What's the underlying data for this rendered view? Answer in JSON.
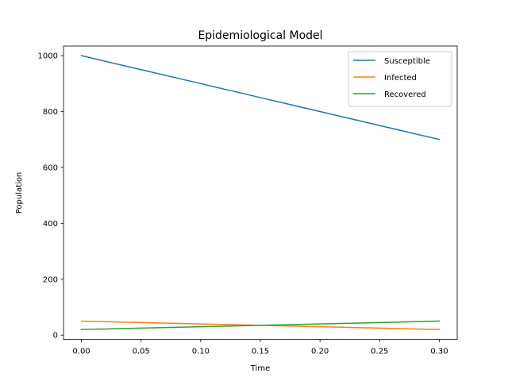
{
  "chart_data": {
    "type": "line",
    "title": "Epidemiological Model",
    "xlabel": "Time",
    "ylabel": "Population",
    "x": [
      0.0,
      0.05,
      0.1,
      0.15,
      0.2,
      0.25,
      0.3
    ],
    "xlim": [
      -0.015,
      0.315
    ],
    "ylim": [
      -15.4,
      1034.4
    ],
    "xticks": [
      0.0,
      0.05,
      0.1,
      0.15,
      0.2,
      0.25,
      0.3
    ],
    "xtick_labels": [
      "0.00",
      "0.05",
      "0.10",
      "0.15",
      "0.20",
      "0.25",
      "0.30"
    ],
    "yticks": [
      0,
      200,
      400,
      600,
      800,
      1000
    ],
    "ytick_labels": [
      "0",
      "200",
      "400",
      "600",
      "800",
      "1000"
    ],
    "grid": false,
    "legend_position": "upper right",
    "series": [
      {
        "name": "Susceptible",
        "color": "#1f77b4",
        "values": [
          1000,
          950,
          900,
          850,
          800,
          750,
          700
        ]
      },
      {
        "name": "Infected",
        "color": "#ff7f0e",
        "values": [
          50,
          45,
          40,
          35,
          30,
          25,
          20
        ]
      },
      {
        "name": "Recovered",
        "color": "#2ca02c",
        "values": [
          20,
          25,
          30,
          35,
          40,
          45,
          50
        ]
      }
    ]
  }
}
